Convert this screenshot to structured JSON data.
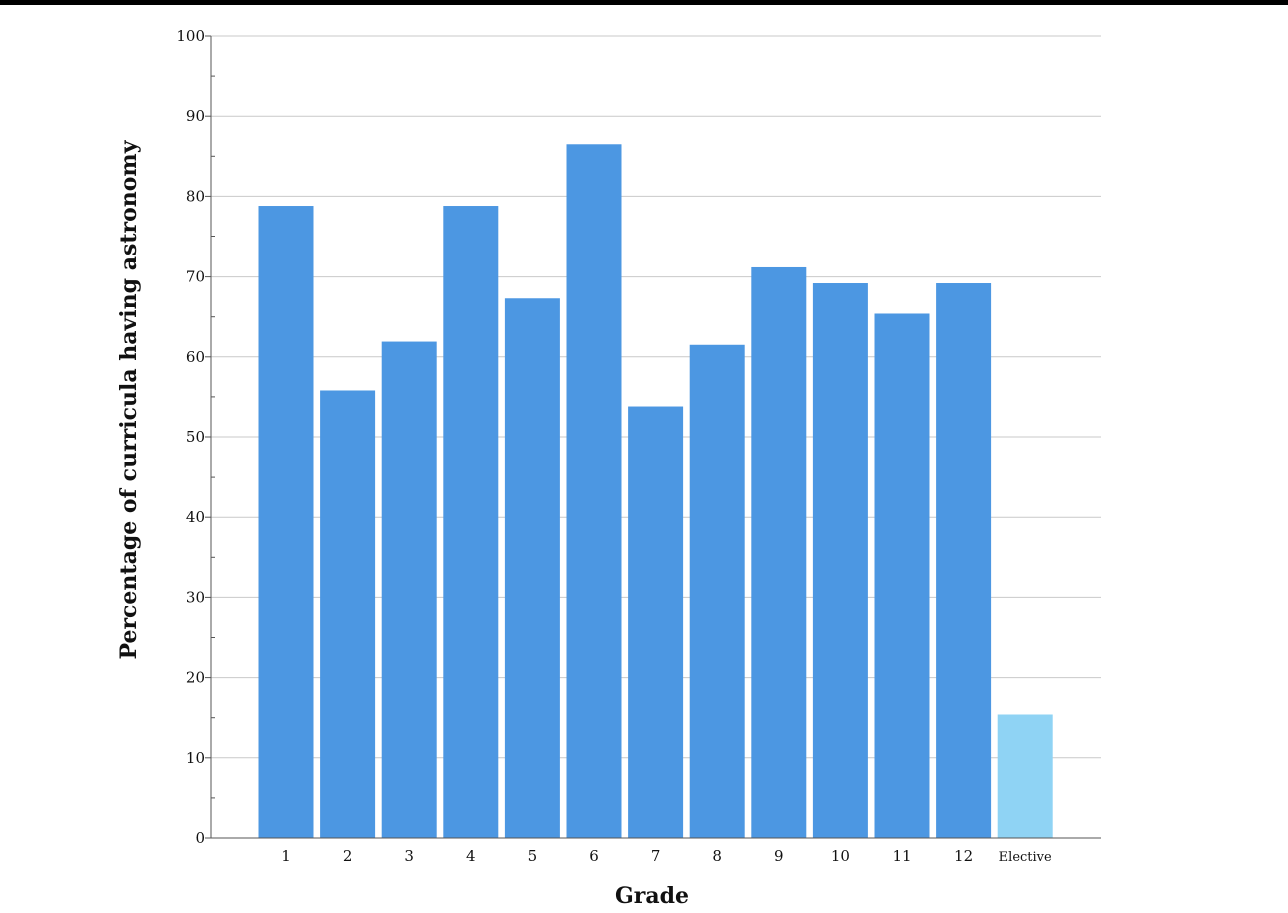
{
  "chart_data": {
    "type": "bar",
    "categories": [
      "1",
      "2",
      "3",
      "4",
      "5",
      "6",
      "7",
      "8",
      "9",
      "10",
      "11",
      "12",
      "Elective"
    ],
    "values": [
      78.8,
      55.8,
      61.9,
      78.8,
      67.3,
      86.5,
      53.8,
      61.5,
      71.2,
      69.2,
      65.4,
      69.2,
      15.4
    ],
    "bar_colors": [
      "#4c97e2",
      "#4c97e2",
      "#4c97e2",
      "#4c97e2",
      "#4c97e2",
      "#4c97e2",
      "#4c97e2",
      "#4c97e2",
      "#4c97e2",
      "#4c97e2",
      "#4c97e2",
      "#4c97e2",
      "#8fd3f4"
    ],
    "title": "",
    "xlabel": "Grade",
    "ylabel": "Percentage of curricula having astronomy",
    "ylim": [
      0,
      100
    ],
    "yticks": [
      "0",
      "10",
      "20",
      "30",
      "40",
      "50",
      "60",
      "70",
      "80",
      "90",
      "100"
    ],
    "grid": true,
    "gridline_color": "#c9c9c9"
  }
}
